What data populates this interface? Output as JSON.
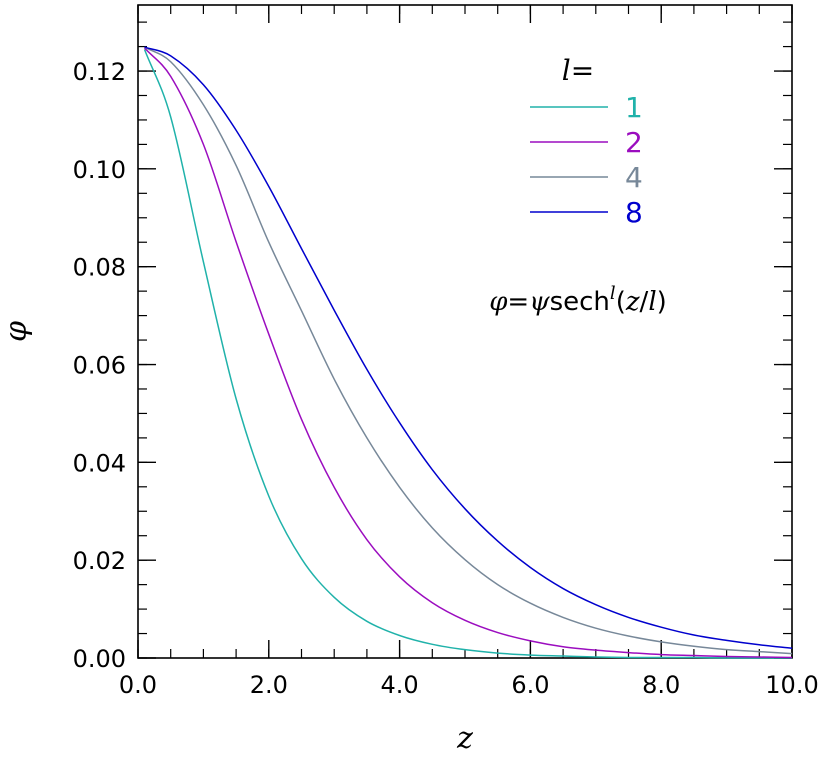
{
  "chart_data": {
    "type": "line",
    "title": "",
    "xlabel": "z",
    "ylabel": "φ",
    "xlim": [
      0,
      10
    ],
    "ylim": [
      0,
      0.1335
    ],
    "x_ticks": [
      {
        "value": 0,
        "label": "0.0"
      },
      {
        "value": 2,
        "label": "2.0"
      },
      {
        "value": 4,
        "label": "4.0"
      },
      {
        "value": 6,
        "label": "6.0"
      },
      {
        "value": 8,
        "label": "8.0"
      },
      {
        "value": 10,
        "label": "10.0"
      }
    ],
    "y_ticks": [
      {
        "value": 0,
        "label": "0.00"
      },
      {
        "value": 0.02,
        "label": "0.02"
      },
      {
        "value": 0.04,
        "label": "0.04"
      },
      {
        "value": 0.06,
        "label": "0.06"
      },
      {
        "value": 0.08,
        "label": "0.08"
      },
      {
        "value": 0.1,
        "label": "0.10"
      },
      {
        "value": 0.12,
        "label": "0.12"
      }
    ],
    "x_minor_step": 0.5,
    "y_minor_step": 0.005,
    "grid": false,
    "legend_position": "top-right",
    "legend_title": "l=",
    "annotation": {
      "parts": [
        {
          "text": "φ",
          "italic": true
        },
        {
          "text": "=",
          "italic": false
        },
        {
          "text": "ψ",
          "italic": true
        },
        {
          "text": "sech",
          "italic": false
        },
        {
          "text": "l",
          "italic": true,
          "superscript": true
        },
        {
          "text": "(",
          "italic": false
        },
        {
          "text": "z",
          "italic": true
        },
        {
          "text": "/",
          "italic": false
        },
        {
          "text": "l",
          "italic": true
        },
        {
          "text": ")",
          "italic": false
        }
      ]
    },
    "x": [
      0.1,
      0.5,
      1.0,
      1.5,
      2.0,
      2.5,
      3.0,
      3.5,
      4.0,
      4.5,
      5.0,
      5.5,
      6.0,
      6.5,
      7.0,
      7.5,
      8.0,
      8.5,
      9.0,
      9.5,
      10.0
    ],
    "series": [
      {
        "name": "1",
        "color": "#20b2aa",
        "values": [
          0.1244,
          0.1106,
          0.081,
          0.053,
          0.0331,
          0.0203,
          0.0124,
          0.0075,
          0.0046,
          0.0028,
          0.0017,
          0.001,
          0.0006,
          0.0004,
          0.0002,
          0.0001,
          0.0001,
          0.0001,
          0.0,
          0.0,
          0.0
        ]
      },
      {
        "name": "2",
        "color": "#9b0dbf",
        "values": [
          0.1247,
          0.1189,
          0.105,
          0.0851,
          0.0662,
          0.0488,
          0.0349,
          0.0242,
          0.0166,
          0.0113,
          0.0077,
          0.0052,
          0.0035,
          0.0023,
          0.0016,
          0.0011,
          0.0007,
          0.0005,
          0.0003,
          0.0002,
          0.0001
        ]
      },
      {
        "name": "4",
        "color": "#778899",
        "values": [
          0.1249,
          0.1219,
          0.1131,
          0.1007,
          0.085,
          0.071,
          0.057,
          0.045,
          0.0349,
          0.0266,
          0.0201,
          0.015,
          0.0112,
          0.0083,
          0.0061,
          0.0045,
          0.0033,
          0.0024,
          0.0017,
          0.0013,
          0.0009
        ]
      },
      {
        "name": "8",
        "color": "#0000cd",
        "values": [
          0.1249,
          0.1231,
          0.1172,
          0.1079,
          0.0964,
          0.0837,
          0.0711,
          0.059,
          0.0481,
          0.0385,
          0.0305,
          0.0239,
          0.0185,
          0.0142,
          0.0109,
          0.0083,
          0.0063,
          0.0047,
          0.0036,
          0.0027,
          0.002
        ]
      }
    ]
  }
}
